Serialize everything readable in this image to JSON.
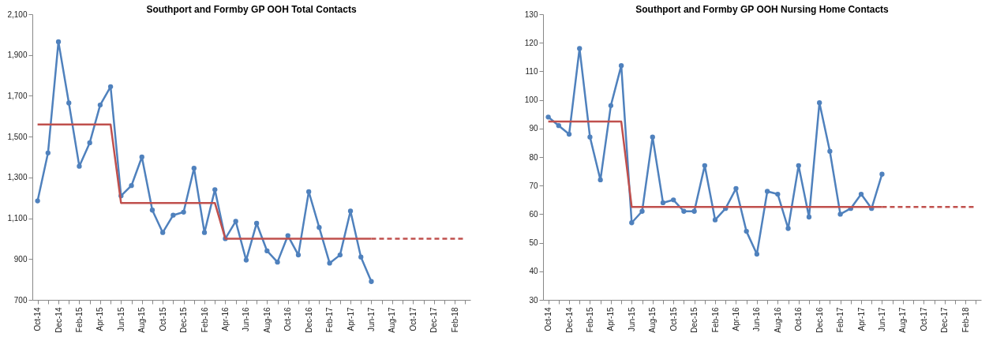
{
  "chart_data": [
    {
      "type": "line",
      "title": "Southport and Formby GP OOH Total Contacts",
      "categories": [
        "Oct-14",
        null,
        "Dec-14",
        null,
        "Feb-15",
        null,
        "Apr-15",
        null,
        "Jun-15",
        null,
        "Aug-15",
        null,
        "Oct-15",
        null,
        "Dec-15",
        null,
        "Feb-16",
        null,
        "Apr-16",
        null,
        "Jun-16",
        null,
        "Aug-16",
        null,
        "Oct-16",
        null,
        "Dec-16",
        null,
        "Feb-17",
        null,
        "Apr-17",
        null,
        "Jun-17",
        null,
        "Aug-17",
        null,
        "Oct-17",
        null,
        "Dec-17",
        null,
        "Feb-18",
        null
      ],
      "series": [
        {
          "color": "#4f81bd",
          "marker": "circle",
          "line_style": "solid",
          "values": [
            1185,
            1420,
            1965,
            1665,
            1355,
            1470,
            1655,
            1745,
            1210,
            1260,
            1400,
            1140,
            1030,
            1115,
            1130,
            1345,
            1030,
            1240,
            1000,
            1085,
            895,
            1075,
            940,
            885,
            1015,
            920,
            1230,
            1055,
            880,
            920,
            1135,
            910,
            790,
            null,
            null,
            null,
            null,
            null,
            null,
            null,
            null,
            null
          ]
        },
        {
          "color": "#c0504d",
          "marker": "none",
          "line_style": "solid",
          "values": [
            1560,
            1560,
            1560,
            1560,
            1560,
            1560,
            1560,
            1560,
            1175,
            1175,
            1175,
            1175,
            1175,
            1175,
            1175,
            1175,
            1175,
            1175,
            1000,
            1000,
            1000,
            1000,
            1000,
            1000,
            1000,
            1000,
            1000,
            1000,
            1000,
            1000,
            1000,
            1000,
            1000,
            null,
            null,
            null,
            null,
            null,
            null,
            null,
            null,
            null
          ]
        },
        {
          "color": "#c0504d",
          "marker": "none",
          "line_style": "dashed",
          "values": [
            null,
            null,
            null,
            null,
            null,
            null,
            null,
            null,
            null,
            null,
            null,
            null,
            null,
            null,
            null,
            null,
            null,
            null,
            null,
            null,
            null,
            null,
            null,
            null,
            null,
            null,
            null,
            null,
            null,
            null,
            null,
            null,
            1000,
            1000,
            1000,
            1000,
            1000,
            1000,
            1000,
            1000,
            1000,
            1000
          ]
        }
      ],
      "ylim": [
        700,
        2100
      ],
      "yticks": [
        700,
        900,
        {
          "value": 1100,
          "label": "1,100"
        },
        {
          "value": 1300,
          "label": "1,300"
        },
        {
          "value": 1500,
          "label": "1,500"
        },
        {
          "value": 1700,
          "label": "1,700"
        },
        {
          "value": 1900,
          "label": "1,900"
        },
        {
          "value": 2100,
          "label": "2,100"
        }
      ],
      "grid": false
    },
    {
      "type": "line",
      "title": "Southport and Formby GP OOH Nursing Home Contacts",
      "categories": [
        "Oct-14",
        null,
        "Dec-14",
        null,
        "Feb-15",
        null,
        "Apr-15",
        null,
        "Jun-15",
        null,
        "Aug-15",
        null,
        "Oct-15",
        null,
        "Dec-15",
        null,
        "Feb-16",
        null,
        "Apr-16",
        null,
        "Jun-16",
        null,
        "Aug-16",
        null,
        "Oct-16",
        null,
        "Dec-16",
        null,
        "Feb-17",
        null,
        "Apr-17",
        null,
        "Jun-17",
        null,
        "Aug-17",
        null,
        "Oct-17",
        null,
        "Dec-17",
        null,
        "Feb-18",
        null
      ],
      "series": [
        {
          "color": "#4f81bd",
          "marker": "circle",
          "line_style": "solid",
          "values": [
            94,
            91,
            88,
            118,
            87,
            72,
            98,
            112,
            57,
            61,
            87,
            64,
            65,
            61,
            61,
            77,
            58,
            62,
            69,
            54,
            46,
            68,
            67,
            55,
            77,
            59,
            99,
            82,
            60,
            62,
            67,
            62,
            74,
            null,
            null,
            null,
            null,
            null,
            null,
            null,
            null,
            null
          ]
        },
        {
          "color": "#c0504d",
          "marker": "none",
          "line_style": "solid",
          "values": [
            92.4,
            92.4,
            92.4,
            92.4,
            92.4,
            92.4,
            92.4,
            92.4,
            62.5,
            62.5,
            62.5,
            62.5,
            62.5,
            62.5,
            62.5,
            62.5,
            62.5,
            62.5,
            62.5,
            62.5,
            62.5,
            62.5,
            62.5,
            62.5,
            62.5,
            62.5,
            62.5,
            62.5,
            62.5,
            62.5,
            62.5,
            62.5,
            62.5,
            null,
            null,
            null,
            null,
            null,
            null,
            null,
            null,
            null
          ]
        },
        {
          "color": "#c0504d",
          "marker": "none",
          "line_style": "dashed",
          "values": [
            null,
            null,
            null,
            null,
            null,
            null,
            null,
            null,
            null,
            null,
            null,
            null,
            null,
            null,
            null,
            null,
            null,
            null,
            null,
            null,
            null,
            null,
            null,
            null,
            null,
            null,
            null,
            null,
            null,
            null,
            null,
            null,
            62.5,
            62.5,
            62.5,
            62.5,
            62.5,
            62.5,
            62.5,
            62.5,
            62.5,
            62.5
          ]
        }
      ],
      "ylim": [
        30,
        130
      ],
      "yticks": [
        30,
        40,
        50,
        60,
        70,
        80,
        90,
        100,
        110,
        120,
        130
      ],
      "grid": false
    }
  ]
}
